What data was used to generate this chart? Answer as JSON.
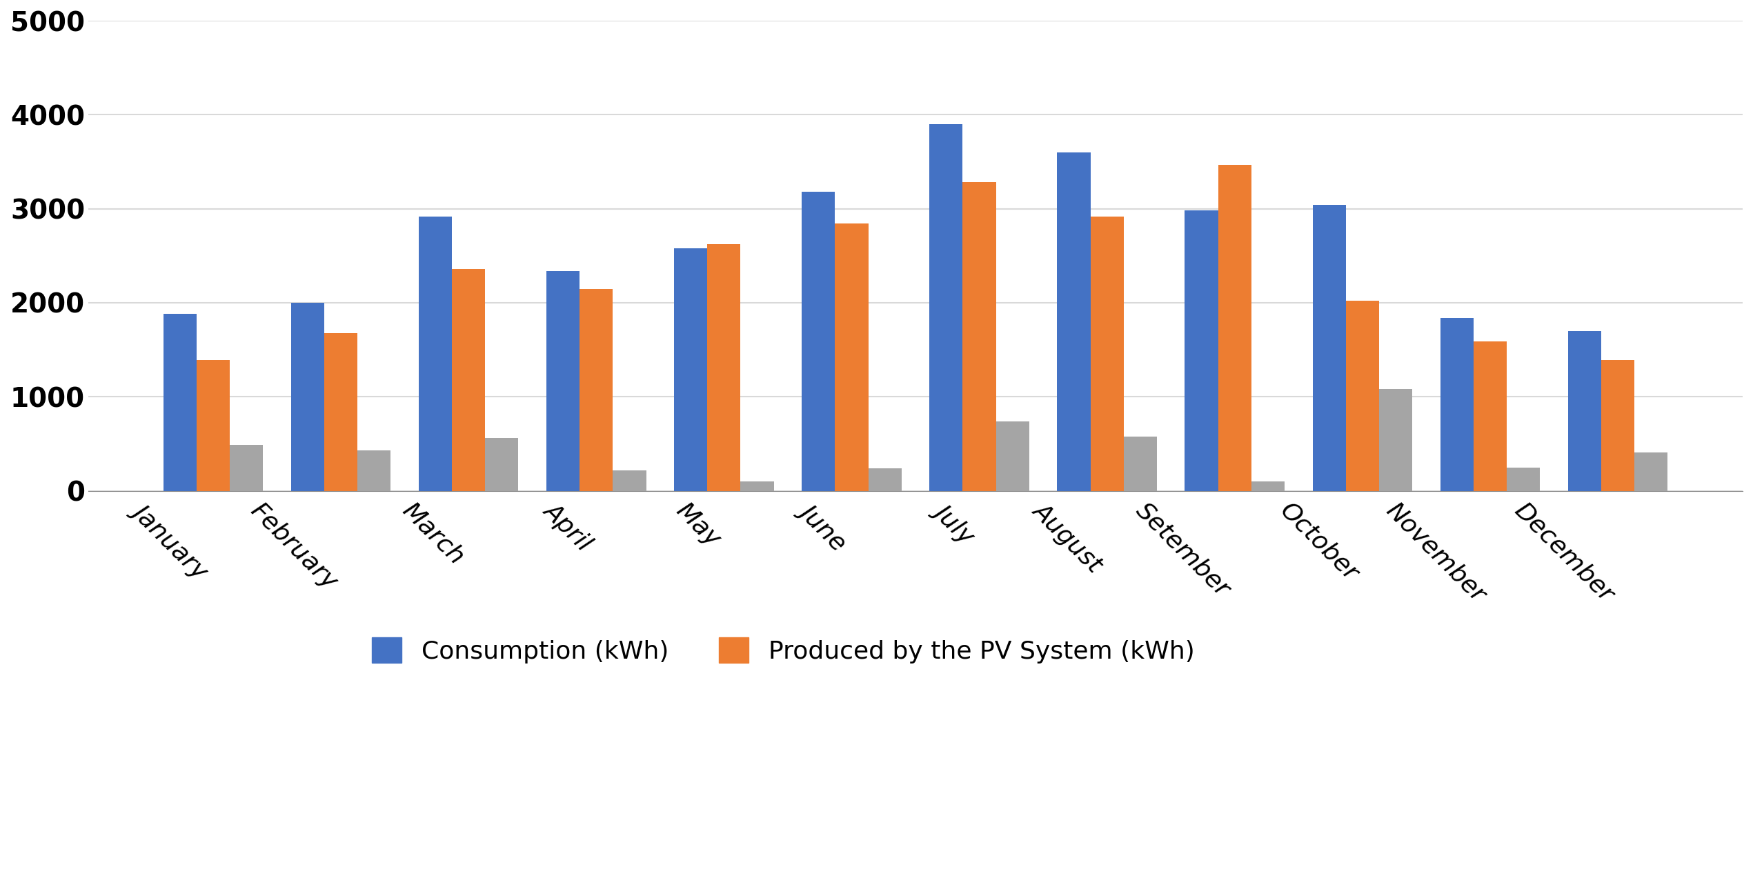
{
  "months": [
    "January",
    "February",
    "March",
    "April",
    "May",
    "June",
    "July",
    "August",
    "Setember",
    "October",
    "November",
    "December"
  ],
  "consumption": [
    1880,
    2000,
    2920,
    2340,
    2580,
    3180,
    3900,
    3600,
    2980,
    3040,
    1840,
    1700
  ],
  "produced": [
    1390,
    1680,
    2360,
    2150,
    2620,
    2840,
    3280,
    2920,
    3470,
    2020,
    1590,
    1390
  ],
  "third_series": [
    490,
    430,
    560,
    220,
    100,
    240,
    740,
    580,
    100,
    1080,
    250,
    410
  ],
  "color_blue": "#4472C4",
  "color_orange": "#ED7D31",
  "color_gray": "#A5A5A5",
  "ylim": [
    0,
    5000
  ],
  "yticks": [
    0,
    1000,
    2000,
    3000,
    4000,
    5000
  ],
  "legend_labels": [
    "Consumption (kWh)",
    "Produced by the PV System (kWh)"
  ],
  "background_color": "#FFFFFF",
  "grid_color": "#D9D9D9",
  "bar_width": 0.26,
  "ytick_fontsize": 28,
  "xtick_fontsize": 26,
  "legend_fontsize": 26,
  "label_rotation": -45
}
